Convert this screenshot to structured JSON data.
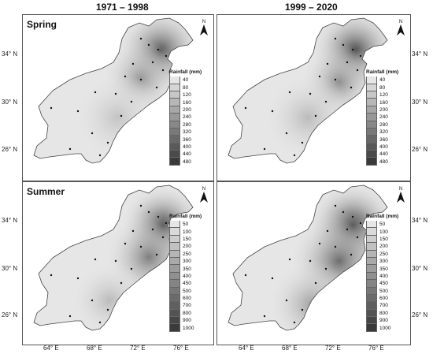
{
  "columns": [
    "1971 – 1998",
    "1999 – 2020"
  ],
  "panels": [
    {
      "season": "Spring",
      "period": "1971 – 1998",
      "legend_title": "Rainfall (mm)",
      "legend": [
        "40",
        "80",
        "120",
        "160",
        "200",
        "240",
        "280",
        "320",
        "360",
        "400",
        "440",
        "480"
      ],
      "side": "left"
    },
    {
      "season": "",
      "period": "1999 – 2020",
      "legend_title": "Rainfall (mm)",
      "legend": [
        "40",
        "80",
        "120",
        "160",
        "200",
        "240",
        "280",
        "320",
        "360",
        "400",
        "440",
        "480"
      ],
      "side": "right"
    },
    {
      "season": "Summer",
      "period": "1971 – 1998",
      "legend_title": "Rainfall (mm)",
      "legend": [
        "50",
        "100",
        "150",
        "200",
        "250",
        "300",
        "350",
        "400",
        "450",
        "500",
        "600",
        "700",
        "800",
        "900",
        "1000"
      ],
      "side": "left"
    },
    {
      "season": "",
      "period": "1999 – 2020",
      "legend_title": "Rainfall (mm)",
      "legend": [
        "50",
        "100",
        "150",
        "200",
        "250",
        "300",
        "350",
        "400",
        "450",
        "500",
        "600",
        "700",
        "800",
        "900",
        "1000"
      ],
      "side": "right"
    }
  ],
  "lat_labels": [
    "34° N",
    "30° N",
    "26° N"
  ],
  "lon_labels": [
    "64° E",
    "68° E",
    "72° E",
    "76° E"
  ],
  "north_letter": "N",
  "colors": {
    "low": "#e6e6e6",
    "high": "#3a3a3a",
    "border": "#555555"
  }
}
